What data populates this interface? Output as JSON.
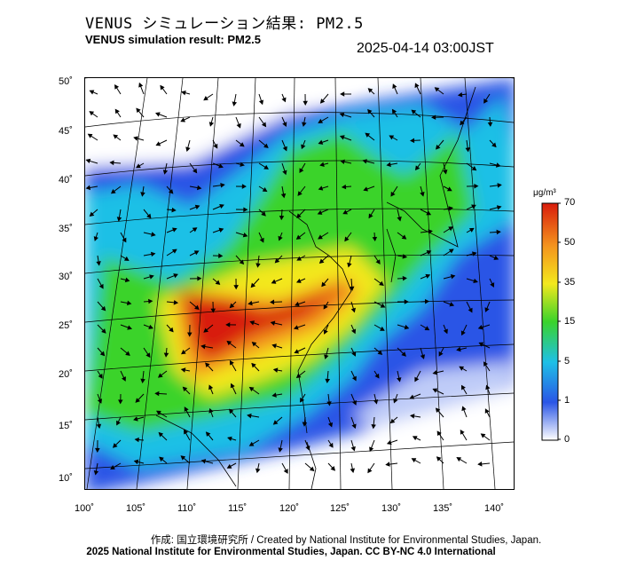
{
  "header": {
    "title_jp": "VENUS シミュレーション結果: PM2.5",
    "title_en": "VENUS simulation result: PM2.5",
    "timestamp": "2025-04-14 03:00JST"
  },
  "map": {
    "lat_labels": [
      "50˚",
      "45˚",
      "40˚",
      "35˚",
      "30˚",
      "25˚",
      "20˚",
      "15˚",
      "10˚"
    ],
    "lon_labels": [
      "100˚",
      "105˚",
      "110˚",
      "115˚",
      "120˚",
      "125˚",
      "130˚",
      "135˚",
      "140˚"
    ],
    "lat_range": [
      9,
      51
    ],
    "lon_range": [
      100,
      141
    ]
  },
  "colorbar": {
    "unit": "μg/m³",
    "levels": [
      "70",
      "50",
      "35",
      "15",
      "5",
      "1",
      "0"
    ],
    "colors": [
      "#d81c0c",
      "#f4941e",
      "#f3e81e",
      "#3ad32b",
      "#1ec0e6",
      "#2a55e6",
      "#ffffff"
    ]
  },
  "footer": {
    "credit_line": "作成: 国立環境研究所 / Created by National Institute for Environmental Studies, Japan.",
    "copyright_line": "2025 National Institute for Environmental Studies, Japan. CC BY-NC 4.0 International"
  }
}
